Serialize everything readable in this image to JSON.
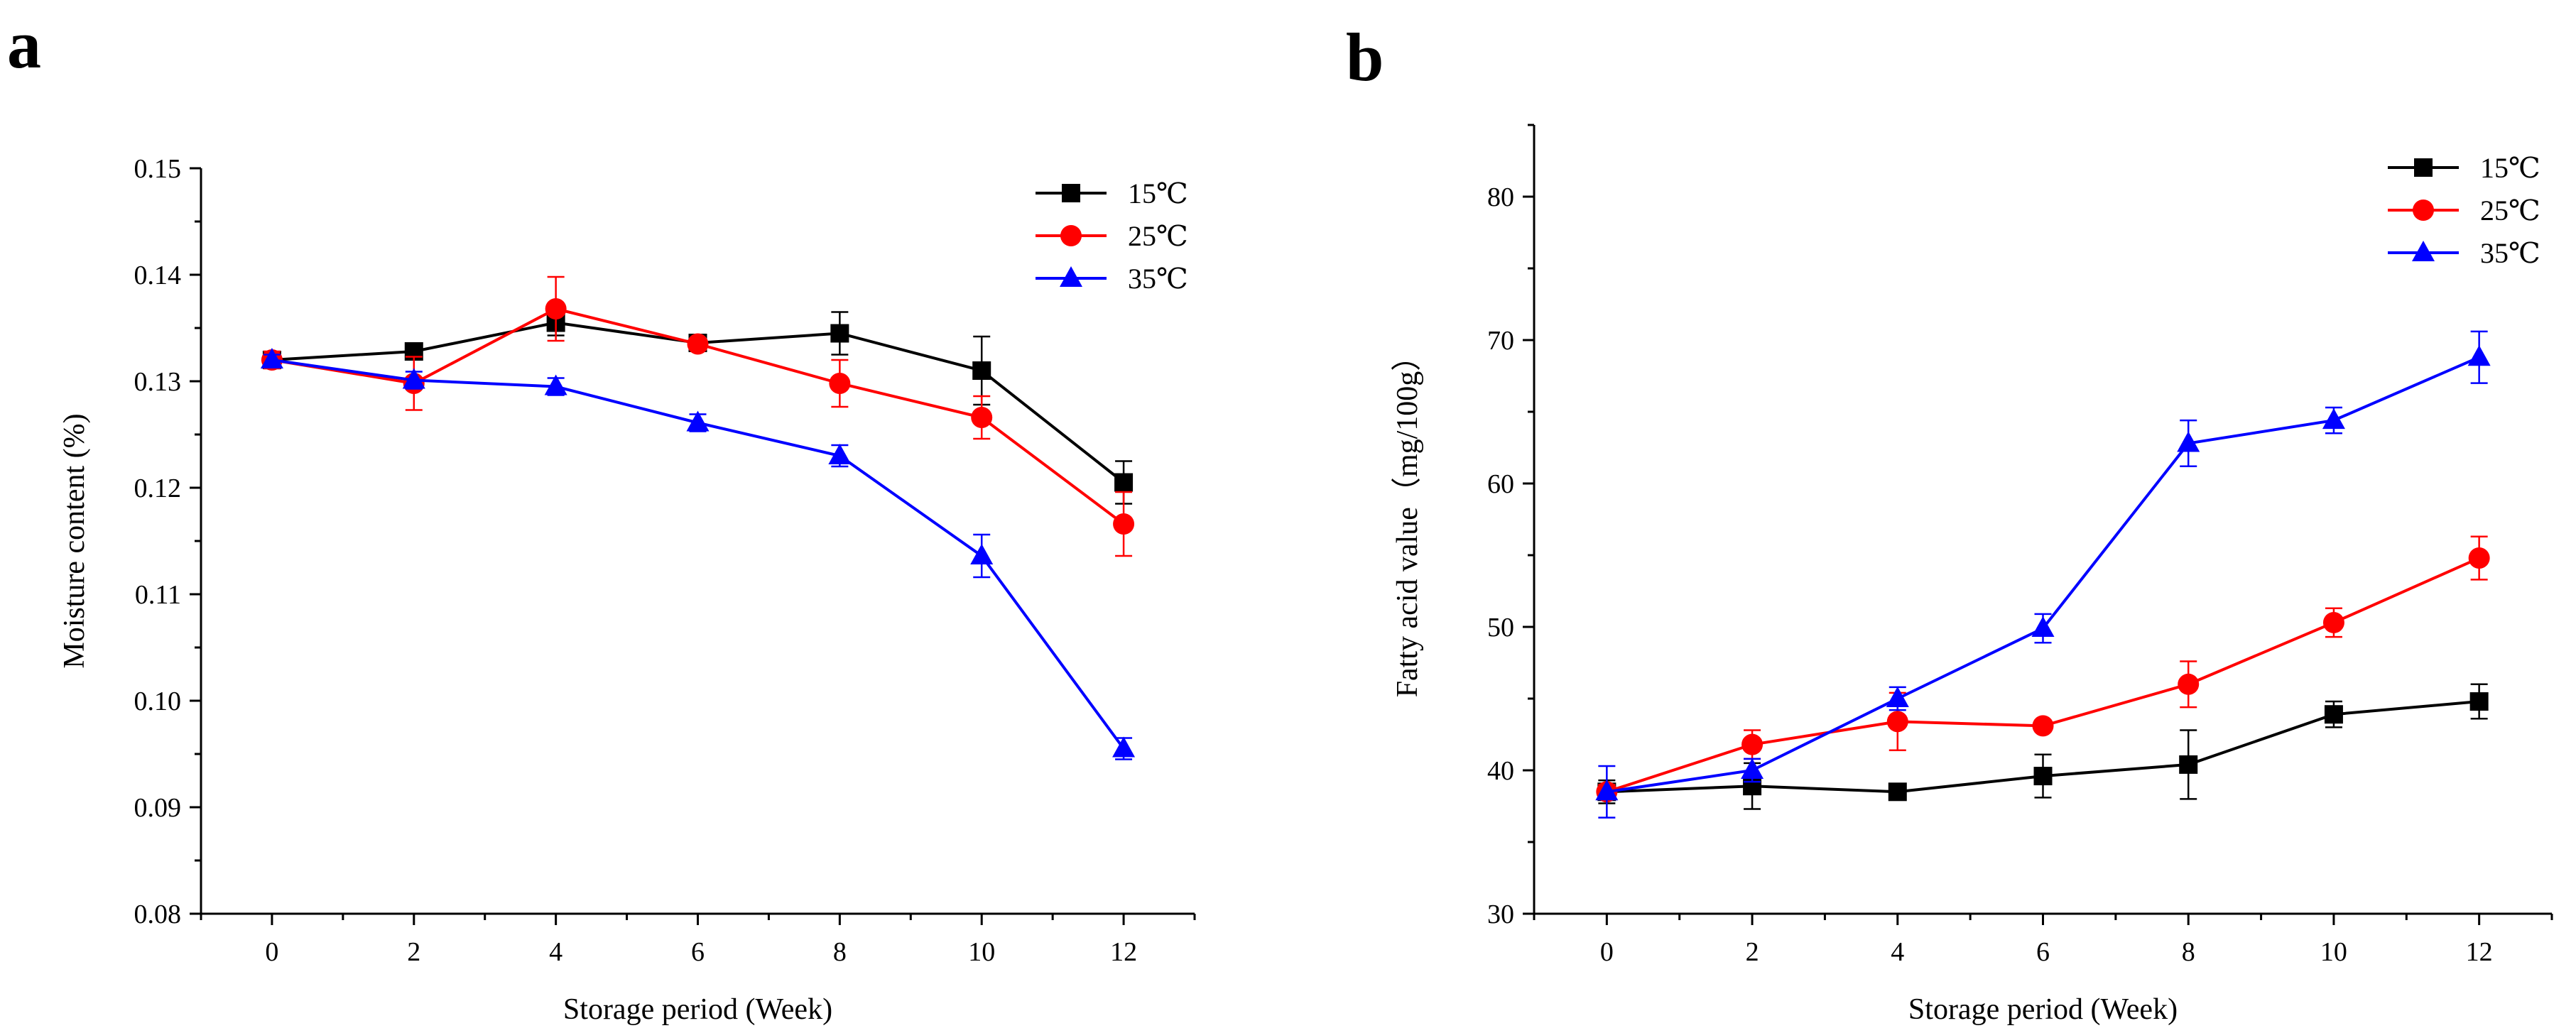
{
  "chart_data": [
    {
      "panel": "a",
      "type": "line",
      "xlabel": "Storage period (Week)",
      "ylabel": "Moisture content (%)",
      "xlim": [
        -1,
        13
      ],
      "ylim": [
        0.08,
        0.15
      ],
      "xticks": [
        0,
        2,
        4,
        6,
        8,
        10,
        12
      ],
      "yticks": [
        0.08,
        0.09,
        0.1,
        0.11,
        0.12,
        0.13,
        0.14,
        0.15
      ],
      "ytick_labels": [
        "0.08",
        "0.09",
        "0.10",
        "0.11",
        "0.12",
        "0.13",
        "0.14",
        "0.15"
      ],
      "legend_position": "top-right",
      "x": [
        0,
        2,
        4,
        6,
        8,
        10,
        12
      ],
      "series": [
        {
          "name": "15℃",
          "color": "#000000",
          "marker": "square",
          "values": [
            0.132,
            0.1328,
            0.1355,
            0.1336,
            0.1345,
            0.131,
            0.1205
          ],
          "errors": [
            0.0005,
            0.0005,
            0.0012,
            0.0004,
            0.002,
            0.0032,
            0.002
          ]
        },
        {
          "name": "25℃",
          "color": "#ff0000",
          "marker": "circle",
          "values": [
            0.132,
            0.1298,
            0.1368,
            0.1335,
            0.1298,
            0.1266,
            0.1166
          ],
          "errors": [
            0.0008,
            0.0025,
            0.003,
            0.0005,
            0.0022,
            0.002,
            0.003
          ]
        },
        {
          "name": "35℃",
          "color": "#0000ff",
          "marker": "triangle",
          "values": [
            0.132,
            0.1301,
            0.1295,
            0.1261,
            0.123,
            0.1136,
            0.0955
          ],
          "errors": [
            0.0005,
            0.0008,
            0.0008,
            0.0008,
            0.001,
            0.002,
            0.001
          ]
        }
      ]
    },
    {
      "panel": "b",
      "type": "line",
      "xlabel": "Storage period (Week)",
      "ylabel": "Fatty acid value（mg/100g）",
      "xlim": [
        -1,
        13
      ],
      "ylim": [
        30,
        85
      ],
      "xticks": [
        0,
        2,
        4,
        6,
        8,
        10,
        12
      ],
      "yticks": [
        30,
        40,
        50,
        60,
        70,
        80
      ],
      "ytick_labels": [
        "30",
        "40",
        "50",
        "60",
        "70",
        "80"
      ],
      "legend_position": "top-right",
      "x": [
        0,
        2,
        4,
        6,
        8,
        10,
        12
      ],
      "series": [
        {
          "name": "15℃",
          "color": "#000000",
          "marker": "square",
          "values": [
            38.5,
            38.9,
            38.5,
            39.6,
            40.4,
            43.9,
            44.8
          ],
          "errors": [
            0.8,
            1.6,
            0.4,
            1.5,
            2.4,
            0.9,
            1.2
          ]
        },
        {
          "name": "25℃",
          "color": "#ff0000",
          "marker": "circle",
          "values": [
            38.5,
            41.8,
            43.4,
            43.1,
            46.0,
            50.3,
            54.8
          ],
          "errors": [
            0.5,
            1.0,
            2.0,
            0.4,
            1.6,
            1.0,
            1.5
          ]
        },
        {
          "name": "35℃",
          "color": "#0000ff",
          "marker": "triangle",
          "values": [
            38.5,
            40.0,
            45.0,
            49.9,
            62.8,
            64.4,
            68.8
          ],
          "errors": [
            1.8,
            0.8,
            0.8,
            1.0,
            1.6,
            0.9,
            1.8
          ]
        }
      ]
    }
  ]
}
